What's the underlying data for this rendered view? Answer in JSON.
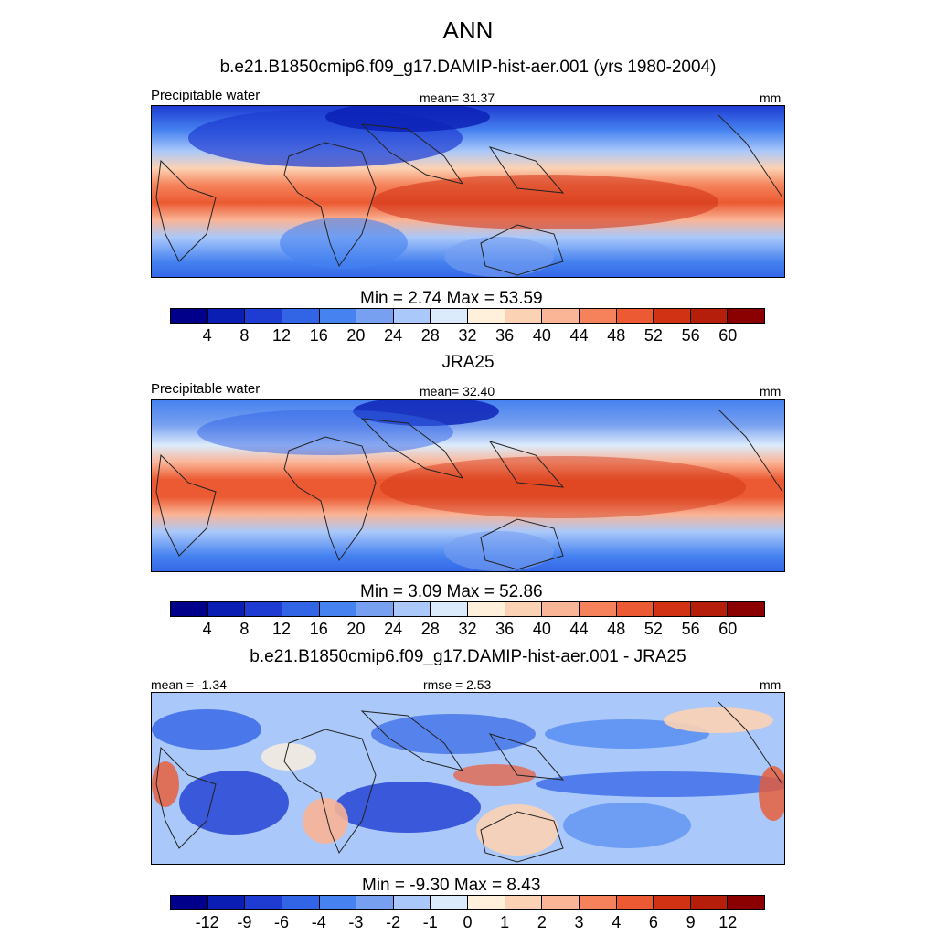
{
  "title": "ANN",
  "subtitle": "b.e21.B1850cmip6.f09_g17.DAMIP-hist-aer.001 (yrs 1980-2004)",
  "colors": {
    "abs": [
      "#00008b",
      "#0a1eb4",
      "#1e3cd2",
      "#3264e6",
      "#4682f0",
      "#78a0f0",
      "#aac8fa",
      "#dcebfc",
      "#fff0dc",
      "#fcd2b4",
      "#fab496",
      "#f5825a",
      "#eb5a32",
      "#d23214",
      "#b41e0a",
      "#8b0000"
    ],
    "diff": [
      "#00008b",
      "#0a1eb4",
      "#1e3cd2",
      "#3264e6",
      "#4682f0",
      "#78a0f0",
      "#aac8fa",
      "#dcebfc",
      "#fff0dc",
      "#fcd2b4",
      "#fab496",
      "#f5825a",
      "#eb5a32",
      "#d23214",
      "#b41e0a",
      "#8b0000"
    ]
  },
  "panels": [
    {
      "id": "model",
      "left_label": "Precipitable water",
      "center_label": "mean=  31.37",
      "right_label": "mm",
      "minmax": "Min =   2.74 Max =  53.59",
      "ticks": [
        "4",
        "8",
        "12",
        "16",
        "20",
        "24",
        "28",
        "32",
        "36",
        "40",
        "44",
        "48",
        "52",
        "56",
        "60"
      ]
    },
    {
      "id": "obs",
      "heading": "JRA25",
      "left_label": "Precipitable water",
      "center_label": "mean=  32.40",
      "right_label": "mm",
      "minmax": "Min =   3.09 Max =  52.86",
      "ticks": [
        "4",
        "8",
        "12",
        "16",
        "20",
        "24",
        "28",
        "32",
        "36",
        "40",
        "44",
        "48",
        "52",
        "56",
        "60"
      ]
    },
    {
      "id": "diff",
      "heading": "b.e21.B1850cmip6.f09_g17.DAMIP-hist-aer.001 - JRA25",
      "left_label": "mean =  -1.34",
      "center_label": "rmse =   2.53",
      "right_label": "mm",
      "minmax": "Min =  -9.30 Max =   8.43",
      "ticks": [
        "-12",
        "-9",
        "-6",
        "-4",
        "-3",
        "-2",
        "-1",
        "0",
        "1",
        "2",
        "3",
        "4",
        "6",
        "9",
        "12"
      ]
    }
  ]
}
